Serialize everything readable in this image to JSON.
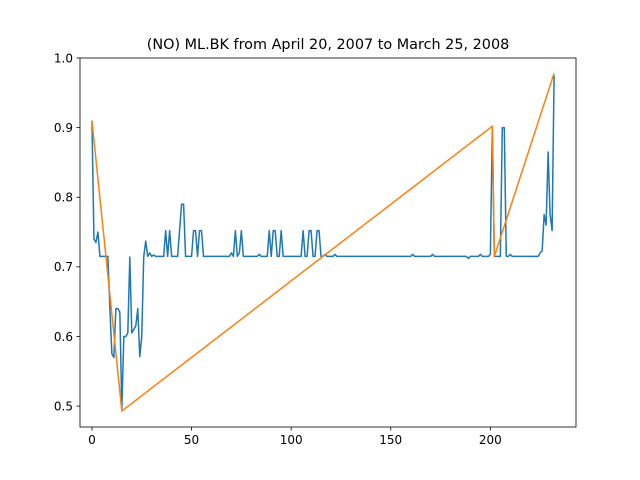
{
  "chart_data": {
    "type": "line",
    "title": "(NO) ML.BK from April 20, 2007 to March 25, 2008",
    "xlabel": "",
    "ylabel": "",
    "xlim": [
      -6,
      243
    ],
    "ylim": [
      0.47,
      1.0
    ],
    "xticks": [
      0,
      50,
      100,
      150,
      200
    ],
    "yticks": [
      0.5,
      0.6,
      0.7,
      0.8,
      0.9,
      1.0
    ],
    "ytick_labels": [
      "0.5",
      "0.6",
      "0.7",
      "0.8",
      "0.9",
      "1.0"
    ],
    "grid": false,
    "series": [
      {
        "color": "#1f77b4",
        "points": [
          [
            0,
            0.91
          ],
          [
            1,
            0.74
          ],
          [
            2,
            0.735
          ],
          [
            3,
            0.75
          ],
          [
            4,
            0.715
          ],
          [
            5,
            0.715
          ],
          [
            6,
            0.715
          ],
          [
            7,
            0.715
          ],
          [
            8,
            0.715
          ],
          [
            9,
            0.64
          ],
          [
            10,
            0.575
          ],
          [
            11,
            0.57
          ],
          [
            12,
            0.64
          ],
          [
            13,
            0.64
          ],
          [
            14,
            0.635
          ],
          [
            15,
            0.495
          ],
          [
            16,
            0.6
          ],
          [
            17,
            0.6
          ],
          [
            18,
            0.605
          ],
          [
            19,
            0.714
          ],
          [
            20,
            0.605
          ],
          [
            21,
            0.61
          ],
          [
            22,
            0.615
          ],
          [
            23,
            0.64
          ],
          [
            24,
            0.571
          ],
          [
            25,
            0.6
          ],
          [
            26,
            0.715
          ],
          [
            27,
            0.737
          ],
          [
            28,
            0.715
          ],
          [
            29,
            0.72
          ],
          [
            30,
            0.715
          ],
          [
            31,
            0.717
          ],
          [
            32,
            0.715
          ],
          [
            33,
            0.715
          ],
          [
            34,
            0.715
          ],
          [
            35,
            0.715
          ],
          [
            36,
            0.715
          ],
          [
            37,
            0.752
          ],
          [
            38,
            0.715
          ],
          [
            39,
            0.752
          ],
          [
            40,
            0.715
          ],
          [
            41,
            0.715
          ],
          [
            42,
            0.715
          ],
          [
            43,
            0.715
          ],
          [
            44,
            0.753
          ],
          [
            45,
            0.79
          ],
          [
            46,
            0.79
          ],
          [
            47,
            0.715
          ],
          [
            48,
            0.715
          ],
          [
            49,
            0.715
          ],
          [
            50,
            0.715
          ],
          [
            51,
            0.752
          ],
          [
            52,
            0.752
          ],
          [
            53,
            0.715
          ],
          [
            54,
            0.752
          ],
          [
            55,
            0.752
          ],
          [
            56,
            0.715
          ],
          [
            57,
            0.715
          ],
          [
            58,
            0.715
          ],
          [
            59,
            0.715
          ],
          [
            60,
            0.715
          ],
          [
            61,
            0.715
          ],
          [
            62,
            0.715
          ],
          [
            63,
            0.715
          ],
          [
            64,
            0.715
          ],
          [
            65,
            0.715
          ],
          [
            66,
            0.715
          ],
          [
            67,
            0.715
          ],
          [
            68,
            0.715
          ],
          [
            69,
            0.715
          ],
          [
            70,
            0.72
          ],
          [
            71,
            0.715
          ],
          [
            72,
            0.752
          ],
          [
            73,
            0.715
          ],
          [
            74,
            0.72
          ],
          [
            75,
            0.752
          ],
          [
            76,
            0.715
          ],
          [
            77,
            0.715
          ],
          [
            78,
            0.715
          ],
          [
            79,
            0.715
          ],
          [
            80,
            0.715
          ],
          [
            81,
            0.715
          ],
          [
            82,
            0.715
          ],
          [
            83,
            0.715
          ],
          [
            84,
            0.718
          ],
          [
            85,
            0.715
          ],
          [
            86,
            0.715
          ],
          [
            87,
            0.715
          ],
          [
            88,
            0.715
          ],
          [
            89,
            0.752
          ],
          [
            90,
            0.715
          ],
          [
            91,
            0.752
          ],
          [
            92,
            0.752
          ],
          [
            93,
            0.715
          ],
          [
            94,
            0.715
          ],
          [
            95,
            0.752
          ],
          [
            96,
            0.715
          ],
          [
            97,
            0.715
          ],
          [
            98,
            0.715
          ],
          [
            99,
            0.715
          ],
          [
            100,
            0.715
          ],
          [
            101,
            0.715
          ],
          [
            102,
            0.715
          ],
          [
            103,
            0.715
          ],
          [
            104,
            0.715
          ],
          [
            105,
            0.715
          ],
          [
            106,
            0.752
          ],
          [
            107,
            0.715
          ],
          [
            108,
            0.715
          ],
          [
            109,
            0.752
          ],
          [
            110,
            0.752
          ],
          [
            111,
            0.715
          ],
          [
            112,
            0.715
          ],
          [
            113,
            0.752
          ],
          [
            114,
            0.752
          ],
          [
            115,
            0.715
          ],
          [
            116,
            0.715
          ],
          [
            117,
            0.718
          ],
          [
            118,
            0.715
          ],
          [
            119,
            0.715
          ],
          [
            120,
            0.715
          ],
          [
            121,
            0.715
          ],
          [
            122,
            0.718
          ],
          [
            123,
            0.715
          ],
          [
            124,
            0.715
          ],
          [
            130,
            0.715
          ],
          [
            140,
            0.715
          ],
          [
            150,
            0.715
          ],
          [
            160,
            0.715
          ],
          [
            161,
            0.718
          ],
          [
            162,
            0.715
          ],
          [
            170,
            0.715
          ],
          [
            171,
            0.718
          ],
          [
            172,
            0.715
          ],
          [
            180,
            0.715
          ],
          [
            188,
            0.715
          ],
          [
            189,
            0.712
          ],
          [
            190,
            0.715
          ],
          [
            194,
            0.715
          ],
          [
            195,
            0.718
          ],
          [
            196,
            0.715
          ],
          [
            199,
            0.715
          ],
          [
            200,
            0.718
          ],
          [
            201,
            0.9
          ],
          [
            202,
            0.715
          ],
          [
            203,
            0.715
          ],
          [
            204,
            0.715
          ],
          [
            205,
            0.715
          ],
          [
            206,
            0.9
          ],
          [
            207,
            0.9
          ],
          [
            208,
            0.715
          ],
          [
            209,
            0.715
          ],
          [
            210,
            0.718
          ],
          [
            211,
            0.715
          ],
          [
            212,
            0.715
          ],
          [
            215,
            0.715
          ],
          [
            220,
            0.715
          ],
          [
            224,
            0.715
          ],
          [
            225,
            0.72
          ],
          [
            226,
            0.723
          ],
          [
            227,
            0.775
          ],
          [
            228,
            0.76
          ],
          [
            229,
            0.865
          ],
          [
            230,
            0.775
          ],
          [
            231,
            0.752
          ],
          [
            232,
            0.975
          ]
        ]
      },
      {
        "color": "#ff7f0e",
        "points": [
          [
            0,
            0.91
          ],
          [
            15,
            0.493
          ],
          [
            201,
            0.902
          ],
          [
            202,
            0.715
          ],
          [
            232,
            0.978
          ]
        ]
      }
    ]
  }
}
